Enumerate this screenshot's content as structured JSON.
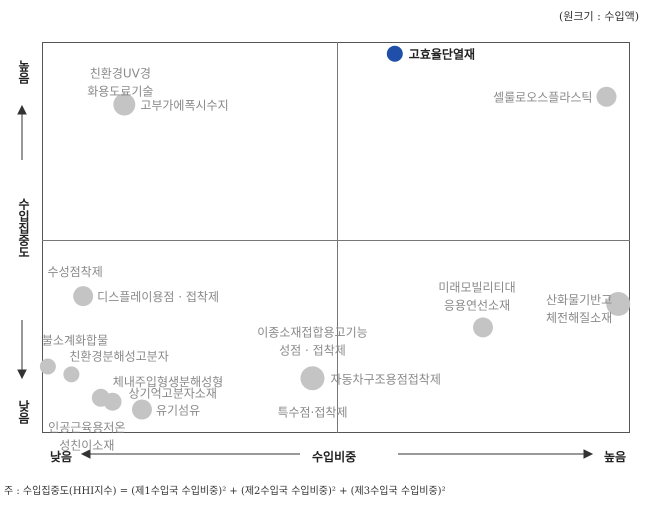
{
  "unit_note": "(원크기 : 수입액)",
  "footnote": "주 : 수입집중도(HHI지수) = (제1수입국 수입비중)² + (제2수입국 수입비중)² + (제3수입국 수입비중)²",
  "chart_data": {
    "type": "scatter",
    "title": "",
    "xlabel": "수입비중",
    "ylabel": "수입집중도",
    "x_low": "낮음",
    "x_high": "높음",
    "y_high": "높음",
    "y_low": "낮음",
    "xlim": [
      0,
      100
    ],
    "ylim": [
      0,
      100
    ],
    "quadrant_split": {
      "x": 50,
      "y": 50
    },
    "colors": {
      "point": "#c4c4c4",
      "highlight": "#1f4fa8",
      "label": "#8a8a8a"
    },
    "points": [
      {
        "label": "고효율단열재",
        "x": 60,
        "y": 97,
        "size": 8,
        "highlight": true
      },
      {
        "label": "친환경UV경\n화용도료기술",
        "x": 14,
        "y": 84,
        "size": 0
      },
      {
        "label": "고부가에폭시수지",
        "x": 14,
        "y": 84,
        "size": 11
      },
      {
        "label": "셀룰로오스플라스틱",
        "x": 96,
        "y": 86,
        "size": 10
      },
      {
        "label": "수성점착제",
        "x": 7,
        "y": 35,
        "size": 0
      },
      {
        "label": "디스플레이용점 · 접착제",
        "x": 7,
        "y": 35,
        "size": 10
      },
      {
        "label": "미래모빌리티대\n응용연선소재",
        "x": 75,
        "y": 27,
        "size": 10
      },
      {
        "label": "산화물기반고\n체전해질소재",
        "x": 98,
        "y": 33,
        "size": 12
      },
      {
        "label": "불소계화합물",
        "x": 1,
        "y": 17,
        "size": 8
      },
      {
        "label": "친환경분해성고분자",
        "x": 5,
        "y": 15,
        "size": 8
      },
      {
        "label": "체내주입형생분해성형",
        "x": 10,
        "y": 9,
        "size": 9
      },
      {
        "label": "상기억고분자소재",
        "x": 12,
        "y": 8,
        "size": 9
      },
      {
        "label": "유기섬유",
        "x": 17,
        "y": 6,
        "size": 10
      },
      {
        "label": "인공근육용저온\n성친이소재",
        "x": 10,
        "y": 5,
        "size": 0
      },
      {
        "label": "이종소재접합용고기능\n성점 · 접착제",
        "x": 46,
        "y": 14,
        "size": 12
      },
      {
        "label": "자동차구조용점접착제",
        "x": 46,
        "y": 14,
        "size": 0
      },
      {
        "label": "특수점·접착제",
        "x": 46,
        "y": 14,
        "size": 0
      }
    ]
  }
}
